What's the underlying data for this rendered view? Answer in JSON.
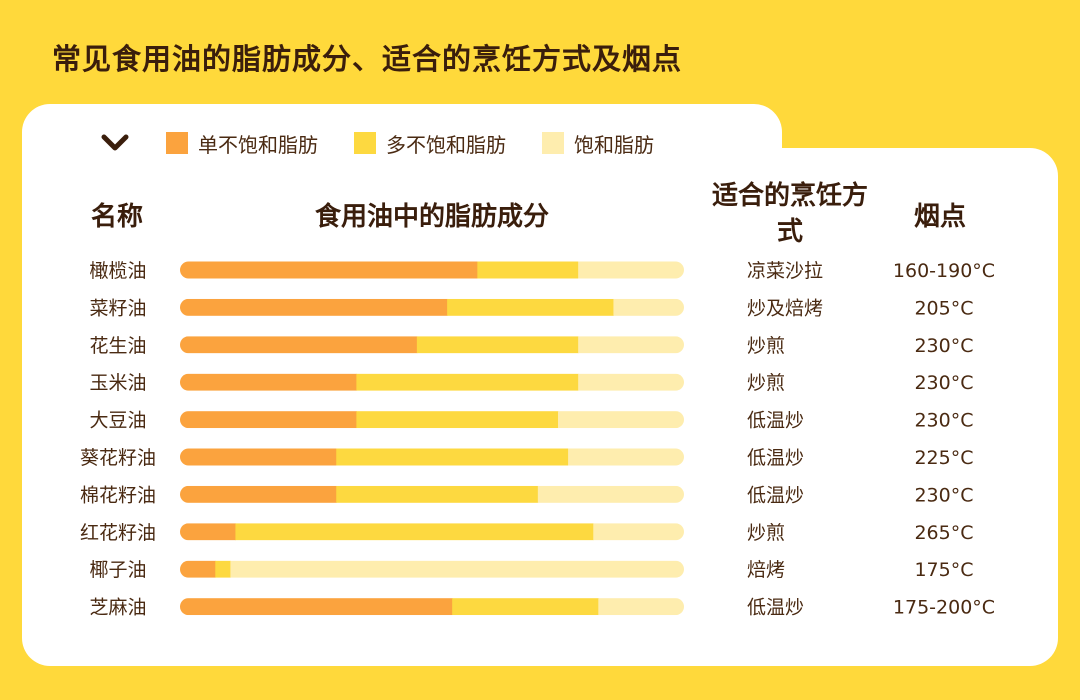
{
  "title": "常见食用油的脂肪成分、适合的烹饪方式及烟点",
  "legend": {
    "toggle_icon": "chevron-down-icon",
    "items": [
      {
        "label": "单不饱和脂肪",
        "color": "#FBA33E"
      },
      {
        "label": "多不饱和脂肪",
        "color": "#FDD940"
      },
      {
        "label": "饱和脂肪",
        "color": "#FEEDAE"
      }
    ]
  },
  "headers": {
    "name": "名称",
    "composition": "食用油中的脂肪成分",
    "cooking": "适合的烹饪方式",
    "smoke_point": "烟点"
  },
  "chart_data": {
    "type": "bar",
    "orientation": "horizontal",
    "stacked": true,
    "normalized": true,
    "title": "常见食用油的脂肪成分、适合的烹饪方式及烟点",
    "categories": [
      "橄榄油",
      "菜籽油",
      "花生油",
      "玉米油",
      "大豆油",
      "葵花籽油",
      "棉花籽油",
      "红花籽油",
      "椰子油",
      "芝麻油"
    ],
    "series": [
      {
        "name": "单不饱和脂肪",
        "color": "#FBA33E",
        "values": [
          59,
          53,
          47,
          35,
          35,
          31,
          31,
          11,
          7,
          54
        ]
      },
      {
        "name": "多不饱和脂肪",
        "color": "#FDD940",
        "values": [
          20,
          33,
          32,
          44,
          40,
          46,
          40,
          71,
          3,
          29
        ]
      },
      {
        "name": "饱和脂肪",
        "color": "#FEEDAE",
        "values": [
          21,
          14,
          21,
          21,
          25,
          23,
          29,
          18,
          90,
          17
        ]
      }
    ],
    "cooking_methods": [
      "凉菜沙拉",
      "炒及焙烤",
      "炒煎",
      "炒煎",
      "低温炒",
      "低温炒",
      "低温炒",
      "炒煎",
      "焙烤",
      "低温炒"
    ],
    "smoke_points": [
      "160-190°C",
      "205°C",
      "230°C",
      "230°C",
      "230°C",
      "225°C",
      "230°C",
      "265°C",
      "175°C",
      "175-200°C"
    ],
    "xlim": [
      0,
      100
    ],
    "grid": false,
    "legend_position": "top"
  }
}
